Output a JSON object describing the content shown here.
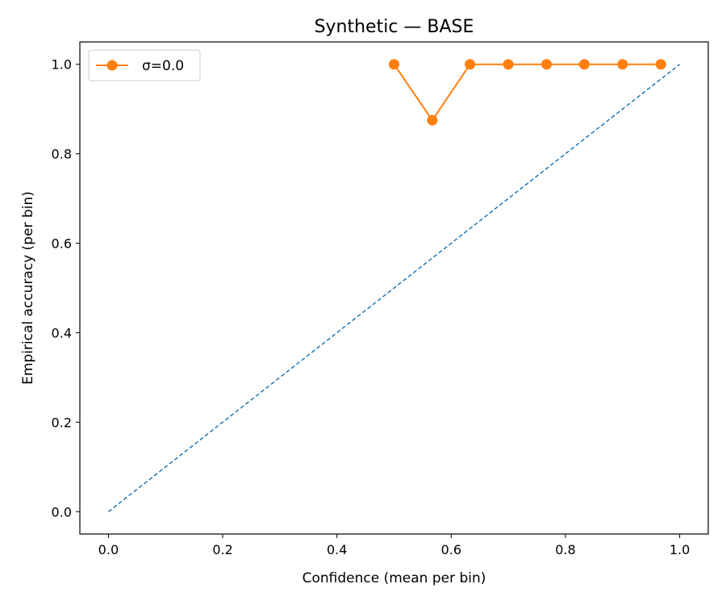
{
  "chart_data": {
    "type": "line",
    "title": "Synthetic — BASE",
    "xlabel": "Confidence (mean per bin)",
    "ylabel": "Empirical accuracy (per bin)",
    "xlim": [
      -0.05,
      1.05
    ],
    "ylim": [
      -0.05,
      1.05
    ],
    "xticks": [
      0.0,
      0.2,
      0.4,
      0.6,
      0.8,
      1.0
    ],
    "yticks": [
      0.0,
      0.2,
      0.4,
      0.6,
      0.8,
      1.0
    ],
    "xtick_labels": [
      "0.0",
      "0.2",
      "0.4",
      "0.6",
      "0.8",
      "1.0"
    ],
    "ytick_labels": [
      "0.0",
      "0.2",
      "0.4",
      "0.6",
      "0.8",
      "1.0"
    ],
    "grid": false,
    "legend_position": "top-left",
    "reference_line": {
      "x": [
        0.0,
        1.0
      ],
      "y": [
        0.0,
        1.0
      ],
      "style": "dashed",
      "color": "#1f77b4"
    },
    "series": [
      {
        "name": "σ=0.0",
        "color": "#ff7f0e",
        "marker": "circle",
        "x": [
          0.5,
          0.567,
          0.633,
          0.7,
          0.767,
          0.833,
          0.9,
          0.967
        ],
        "y": [
          1.0,
          0.875,
          1.0,
          1.0,
          1.0,
          1.0,
          1.0,
          1.0
        ]
      }
    ]
  }
}
